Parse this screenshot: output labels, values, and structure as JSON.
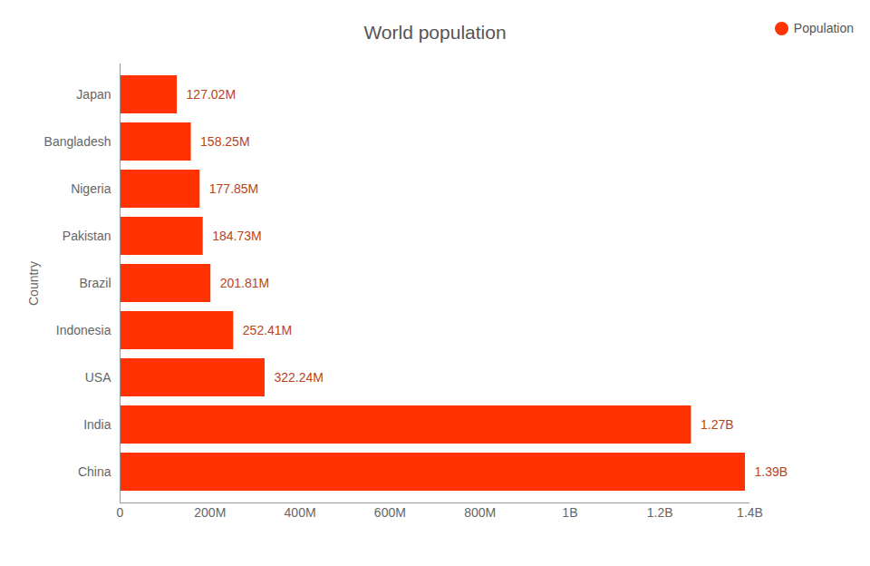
{
  "chart_data": {
    "type": "bar",
    "title": "World population",
    "orientation": "horizontal",
    "y_label": "Country",
    "categories": [
      "Japan",
      "Bangladesh",
      "Nigeria",
      "Pakistan",
      "Brazil",
      "Indonesia",
      "USA",
      "India",
      "China"
    ],
    "series": [
      {
        "name": "Population",
        "color": "#ff3300",
        "values": [
          127020000,
          158250000,
          177850000,
          184730000,
          201810000,
          252410000,
          322240000,
          1270000000,
          1390000000
        ],
        "value_labels": [
          "127.02M",
          "158.25M",
          "177.85M",
          "184.73M",
          "201.81M",
          "252.41M",
          "322.24M",
          "1.27B",
          "1.39B"
        ]
      }
    ],
    "xlim": [
      0,
      1400000000
    ],
    "xticks": [
      0,
      {
        "value": 200000000,
        "label": "200M"
      },
      {
        "value": 400000000,
        "label": "400M"
      },
      {
        "value": 600000000,
        "label": "600M"
      },
      {
        "value": 800000000,
        "label": "800M"
      },
      {
        "value": 1000000000,
        "label": "1B"
      },
      {
        "value": 1200000000,
        "label": "1.2B"
      },
      {
        "value": 1400000000,
        "label": "1.4B"
      }
    ],
    "grid": false,
    "legend": "top-right",
    "data_labels": true
  }
}
